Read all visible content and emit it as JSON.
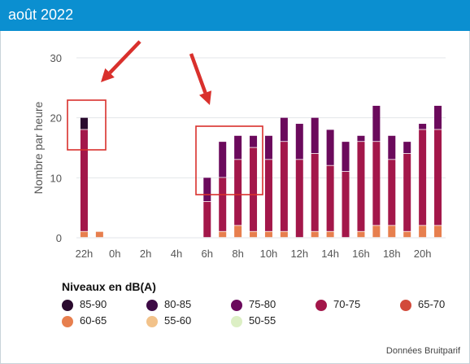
{
  "header": {
    "title": "août 2022"
  },
  "credit": "Données Bruitparif",
  "colors": {
    "header_bg": "#0b8fd0",
    "highlight": "#d9302c",
    "85-90": "#2a0a2e",
    "80-85": "#3d0a45",
    "75-80": "#6b0a5c",
    "70-75": "#a3174a",
    "65-70": "#d24a3a",
    "60-65": "#e77f4e",
    "55-60": "#f2c28a",
    "50-55": "#dcefc4"
  },
  "chart_data": {
    "type": "bar",
    "stacked": true,
    "ylabel": "Nombre par heure",
    "xlabel": "",
    "ylim": [
      0,
      30
    ],
    "yticks": [
      0,
      10,
      20,
      30
    ],
    "categories": [
      "22h",
      "23h",
      "0h",
      "1h",
      "2h",
      "3h",
      "4h",
      "5h",
      "6h",
      "7h",
      "8h",
      "9h",
      "10h",
      "11h",
      "12h",
      "13h",
      "14h",
      "15h",
      "16h",
      "17h",
      "18h",
      "19h",
      "20h",
      "21h"
    ],
    "xtick_labels": [
      "22h",
      "0h",
      "2h",
      "4h",
      "6h",
      "8h",
      "10h",
      "12h",
      "14h",
      "16h",
      "18h",
      "20h"
    ],
    "series": [
      {
        "name": "60-65",
        "values": [
          1,
          1,
          0,
          0,
          0,
          0,
          0,
          0,
          0,
          1,
          2,
          1,
          1,
          1,
          0,
          1,
          1,
          0,
          1,
          2,
          2,
          1,
          2,
          2
        ]
      },
      {
        "name": "70-75",
        "values": [
          17,
          0,
          0,
          0,
          0,
          0,
          0,
          0,
          6,
          9,
          11,
          14,
          12,
          15,
          13,
          13,
          11,
          11,
          15,
          14,
          11,
          13,
          16,
          16
        ]
      },
      {
        "name": "75-80",
        "values": [
          0,
          0,
          0,
          0,
          0,
          0,
          0,
          0,
          4,
          6,
          4,
          2,
          4,
          4,
          6,
          6,
          6,
          5,
          1,
          6,
          4,
          2,
          1,
          4
        ]
      },
      {
        "name": "85-90",
        "values": [
          2,
          0,
          0,
          0,
          0,
          0,
          0,
          0,
          0,
          0,
          0,
          0,
          0,
          0,
          0,
          0,
          0,
          0,
          0,
          0,
          0,
          0,
          0,
          0
        ]
      }
    ],
    "legend_title": "Niveaux en dB(A)",
    "legend": [
      "85-90",
      "80-85",
      "75-80",
      "70-75",
      "65-70",
      "60-65",
      "55-60",
      "50-55"
    ],
    "grid": true
  }
}
